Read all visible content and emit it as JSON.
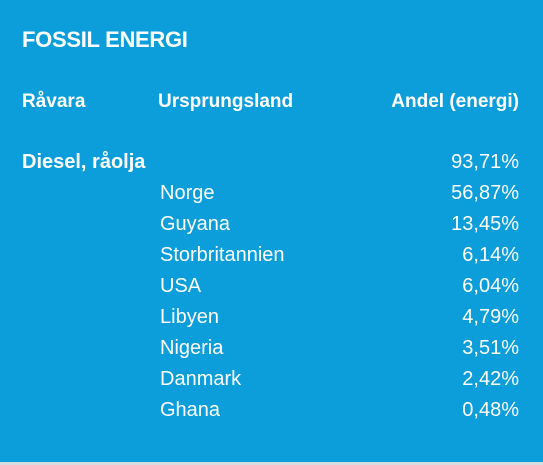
{
  "title": "FOSSIL ENERGI",
  "table": {
    "headers": [
      "Råvara",
      "Ursprungsland",
      "Andel (energi)"
    ],
    "group": {
      "name": "Diesel, råolja",
      "share": "93,71%"
    },
    "rows": [
      [
        "Norge",
        "56,87%"
      ],
      [
        "Guyana",
        "13,45%"
      ],
      [
        "Storbritannien",
        "6,14%"
      ],
      [
        "USA",
        "6,04%"
      ],
      [
        "Libyen",
        "4,79%"
      ],
      [
        "Nigeria",
        "3,51%"
      ],
      [
        "Danmark",
        "2,42%"
      ],
      [
        "Ghana",
        "0,48%"
      ]
    ]
  }
}
